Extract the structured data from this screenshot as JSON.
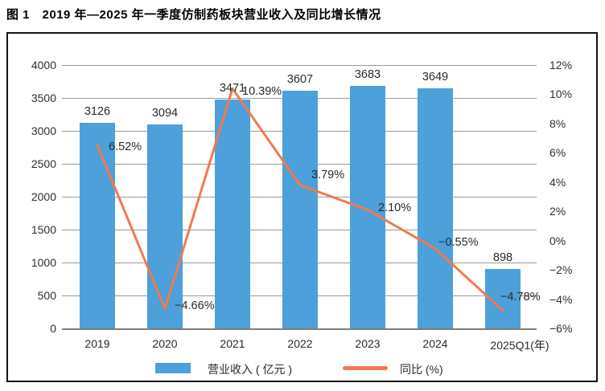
{
  "figure_title": "图 1　2019 年—2025 年一季度仿制药板块营业收入及同比增长情况",
  "colors": {
    "bar": "#4da0d9",
    "line": "#ef7a50",
    "gridline": "#9a9a9a",
    "axis_line": "#7d7d7d",
    "text": "#2a2a2a",
    "border": "#141414"
  },
  "chart_data": {
    "type": "bar",
    "subtype": "combo-bar-line",
    "title": "图 1　2019 年—2025 年一季度仿制药板块营业收入及同比增长情况",
    "categories": [
      "2019",
      "2020",
      "2021",
      "2022",
      "2023",
      "2024",
      "2025Q1(年)"
    ],
    "series": [
      {
        "name": "营业收入 ( 亿元 )",
        "type": "bar",
        "axis": "left",
        "values": [
          3126,
          3094,
          3471,
          3607,
          3683,
          3649,
          898
        ],
        "labels": [
          "3126",
          "3094",
          "3471",
          "3607",
          "3683",
          "3649",
          "898"
        ]
      },
      {
        "name": "同比 (%)",
        "type": "line",
        "axis": "right",
        "values": [
          6.52,
          -4.66,
          10.39,
          3.79,
          2.1,
          -0.55,
          -4.78
        ],
        "labels": [
          "6.52%",
          "−4.66%",
          "10.39%",
          "3.79%",
          "2.10%",
          "−0.55%",
          "−4.78%"
        ]
      }
    ],
    "left_axis": {
      "min": 0,
      "max": 4000,
      "step": 500,
      "ticks_top_to_bottom": [
        "4000",
        "3500",
        "3000",
        "2500",
        "2000",
        "1500",
        "1000",
        "500",
        "0"
      ]
    },
    "right_axis": {
      "min": -6,
      "max": 12,
      "step": 2,
      "ticks_top_to_bottom": [
        "12%",
        "10%",
        "8%",
        "6%",
        "4%",
        "2%",
        "0%",
        "−2%",
        "−4%",
        "−6%"
      ]
    },
    "grid": true,
    "legend_position": "bottom",
    "legend": [
      "营业收入 ( 亿元 )",
      "同比 (%)"
    ]
  }
}
